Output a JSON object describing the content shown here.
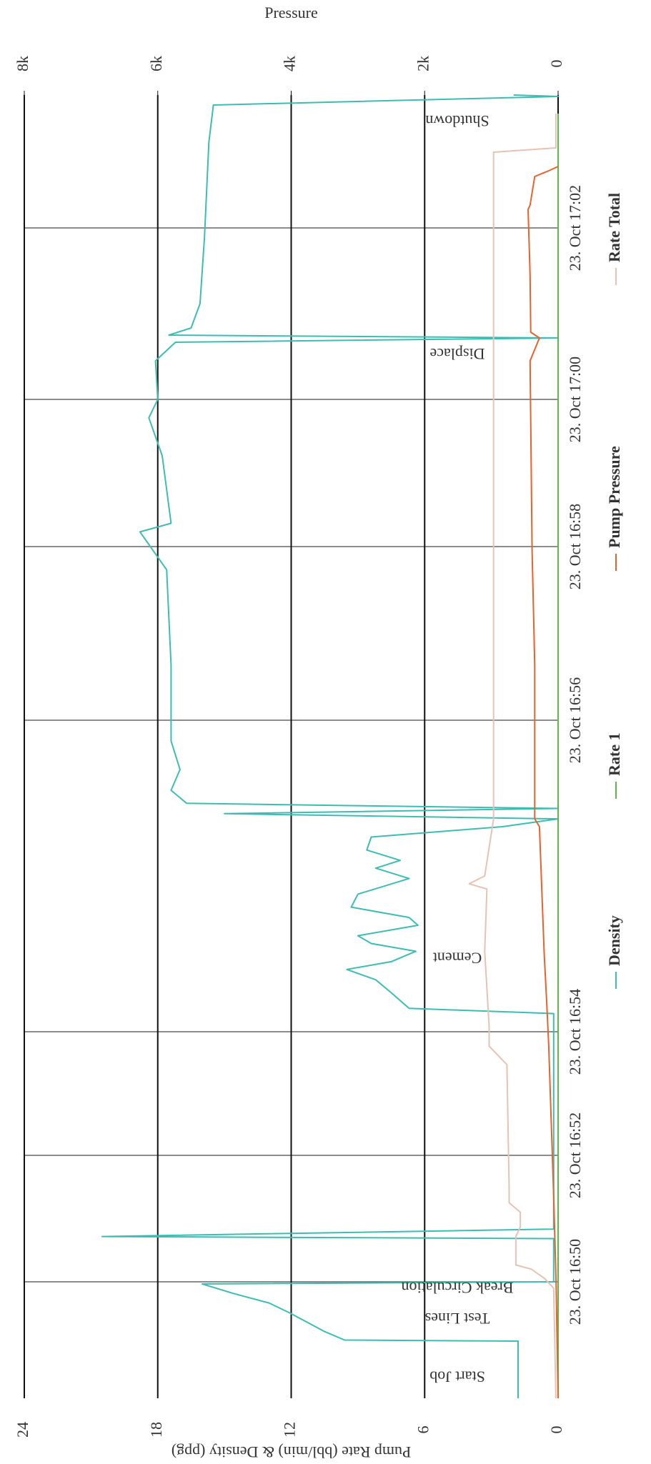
{
  "chart_data": {
    "type": "line",
    "rotated": true,
    "ylabel": "Pump Rate (bbl/min) & Density (ppg)",
    "y2label": "Pressure",
    "xlim": [
      "16:48:10",
      "17:03:33"
    ],
    "xticks": [
      {
        "value": "16:50",
        "label": "23. Oct 16:50"
      },
      {
        "value": "16:52",
        "label": "23. Oct 16:52"
      },
      {
        "value": "16:54",
        "label": "23. Oct 16:54"
      },
      {
        "value": "16:56",
        "label": "23. Oct 16:56"
      },
      {
        "value": "16:58",
        "label": "23. Oct 16:58"
      },
      {
        "value": "17:00",
        "label": "23. Oct 17:00"
      },
      {
        "value": "17:02",
        "label": "23. Oct 17:02"
      }
    ],
    "ylim": [
      0,
      24
    ],
    "yticks": [
      0,
      6,
      12,
      18,
      24
    ],
    "y2lim": [
      0,
      8000
    ],
    "y2ticks": [
      0,
      {
        "value": 2000,
        "label": "2k"
      },
      {
        "value": 4000,
        "label": "4k"
      },
      {
        "value": 6000,
        "label": "6k"
      },
      {
        "value": 8000,
        "label": "8k"
      }
    ],
    "grid": true,
    "legend": "bottom",
    "annotations": [
      {
        "x": "16:48:32",
        "text": "Start Job"
      },
      {
        "x": "16:49:27",
        "text": "Test Lines"
      },
      {
        "x": "16:49:56",
        "text": "Break Circulation"
      },
      {
        "x": "16:54:29",
        "text": "Cement"
      },
      {
        "x": "17:00:33",
        "text": "Displace"
      },
      {
        "x": "17:03:16",
        "text": "Shutdown"
      }
    ],
    "series": [
      {
        "name": "Density",
        "color": "#3dbdb2",
        "x": [
          "16:48:10",
          "16:49:04",
          "16:49:05",
          "16:49:13",
          "16:49:31",
          "16:49:40",
          "16:49:49",
          "16:49:58",
          "16:50:00",
          "16:50:41",
          "16:50:43",
          "16:50:50",
          "16:54:07",
          "16:54:09",
          "16:54:15",
          "16:54:20",
          "16:54:24",
          "16:54:27",
          "16:54:31",
          "16:54:34",
          "16:54:37",
          "16:54:41",
          "16:54:44",
          "16:54:48",
          "16:54:53",
          "16:54:59",
          "16:55:03",
          "16:55:06",
          "16:55:10",
          "16:55:15",
          "16:55:19",
          "16:55:22",
          "16:55:24",
          "16:55:26",
          "16:55:28",
          "16:55:33",
          "16:55:41",
          "16:55:52",
          "16:56:38",
          "16:57:44",
          "16:58:12",
          "16:58:19",
          "16:59:14",
          "16:59:45",
          "17:00:00",
          "17:00:27",
          "17:00:40",
          "17:00:43",
          "17:00:45",
          "17:00:50",
          "17:01:07",
          "17:01:53",
          "17:03:00",
          "17:03:26",
          "17:03:32",
          "17:03:33"
        ],
        "values": [
          1.8,
          1.8,
          9.6,
          10.5,
          12.1,
          13,
          14.6,
          16,
          0.2,
          0.2,
          20.5,
          0.2,
          0.2,
          6.7,
          7.5,
          8.2,
          9.5,
          7.5,
          6.4,
          8.4,
          9,
          6.3,
          6.7,
          9.3,
          9,
          6.7,
          8.2,
          7.1,
          8.6,
          8.4,
          2.5,
          0,
          15,
          0,
          16.7,
          17.4,
          17,
          17.4,
          17.4,
          17.6,
          18.8,
          17.4,
          17.8,
          18.4,
          18,
          18.1,
          17.2,
          0,
          17.5,
          16.5,
          16.1,
          15.9,
          15.7,
          15.5,
          0,
          2
        ]
      },
      {
        "name": "Rate 1",
        "color": "#5cb84a",
        "x": [
          "16:48:10",
          "17:03:20"
        ],
        "values": [
          0,
          0
        ]
      },
      {
        "name": "Pump Pressure",
        "color": "#e8622c",
        "axis": "y2",
        "x": [
          "16:48:10",
          "16:49:59",
          "16:51:28",
          "16:53:46",
          "16:54:11",
          "16:54:31",
          "16:55:19",
          "16:55:22",
          "16:56:38",
          "16:57:57",
          "17:00:27",
          "17:00:43",
          "17:00:47",
          "17:01:27",
          "17:02:13",
          "17:02:16",
          "17:02:36",
          "17:02:40",
          "17:02:43"
        ],
        "values": [
          0,
          30,
          70,
          140,
          170,
          210,
          280,
          350,
          350,
          390,
          420,
          280,
          410,
          420,
          450,
          420,
          350,
          140,
          0
        ]
      },
      {
        "name": "Rate Total",
        "color": "#e6c2b4",
        "x": [
          "16:48:10",
          "16:49:54",
          "16:50:03",
          "16:50:12",
          "16:50:16",
          "16:50:43",
          "16:50:52",
          "16:51:06",
          "16:51:15",
          "16:51:28",
          "16:53:28",
          "16:53:37",
          "16:53:46",
          "16:54:02",
          "16:54:31",
          "16:54:55",
          "16:54:57",
          "16:55:00",
          "16:55:22",
          "17:02:53",
          "17:02:56",
          "17:03:20"
        ],
        "values": [
          0.1,
          0.2,
          0.6,
          1.2,
          1.9,
          1.9,
          1.7,
          1.7,
          2.2,
          2.2,
          2.3,
          2.7,
          3.1,
          3.1,
          3.3,
          3.2,
          4,
          3.3,
          2.9,
          2.9,
          0.1,
          0.1
        ]
      }
    ]
  }
}
